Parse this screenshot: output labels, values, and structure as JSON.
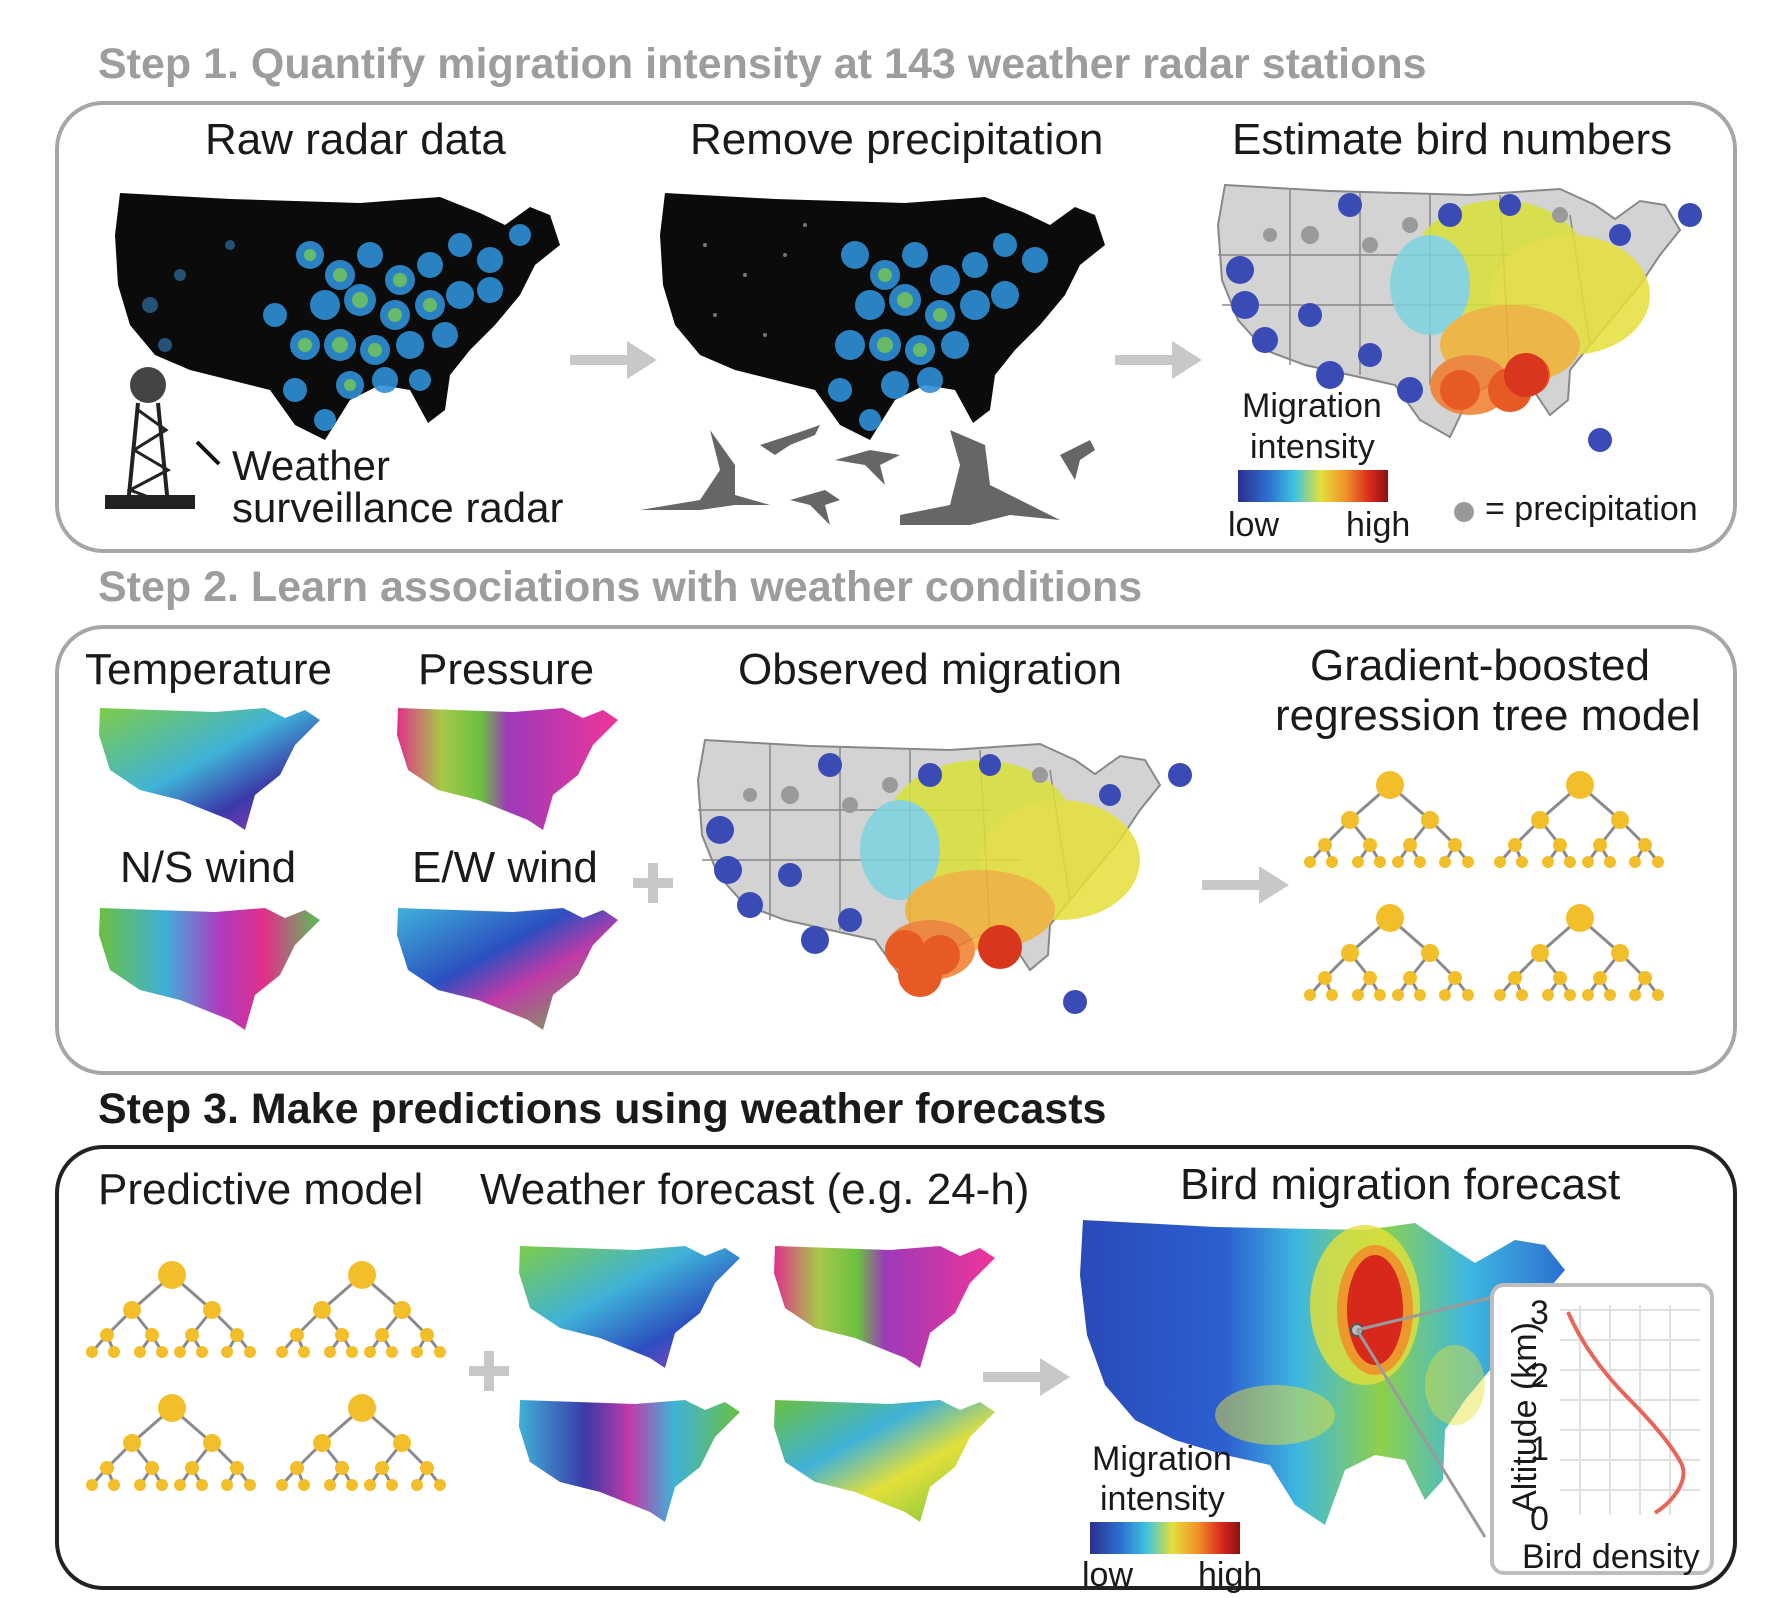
{
  "step1": {
    "title": "Step 1. Quantify migration intensity at 143 weather radar stations",
    "raw_label": "Raw radar data",
    "remove_label": "Remove precipitation",
    "estimate_label": "Estimate bird numbers",
    "radar_label_line1": "Weather",
    "radar_label_line2": "surveillance radar",
    "legend_title_line1": "Migration",
    "legend_title_line2": "intensity",
    "legend_low": "low",
    "legend_high": "high",
    "precip_legend": "= precipitation"
  },
  "step2": {
    "title": "Step 2. Learn associations with weather conditions",
    "temperature_label": "Temperature",
    "pressure_label": "Pressure",
    "ns_wind_label": "N/S wind",
    "ew_wind_label": "E/W wind",
    "observed_label": "Observed migration",
    "model_label_line1": "Gradient-boosted",
    "model_label_line2": "regression tree model"
  },
  "step3": {
    "title": "Step 3. Make predictions using weather forecasts",
    "predictive_label": "Predictive model",
    "forecast_label": "Weather forecast (e.g. 24-h)",
    "bird_forecast_label": "Bird migration forecast",
    "legend_title_line1": "Migration",
    "legend_title_line2": "intensity",
    "legend_low": "low",
    "legend_high": "high",
    "inset": {
      "ylabel": "Altitude (km)",
      "xlabel": "Bird density",
      "yticks": [
        "0",
        "1",
        "2",
        "3"
      ]
    }
  },
  "colors": {
    "step_title_gray": "#9d9d9d",
    "tree_node": "#f2bf2a",
    "tree_edge": "#8a8a8a",
    "arrow": "#c8c8c8",
    "profile_line": "#e8655a",
    "precipitation_dot": "#9a9a9a"
  }
}
